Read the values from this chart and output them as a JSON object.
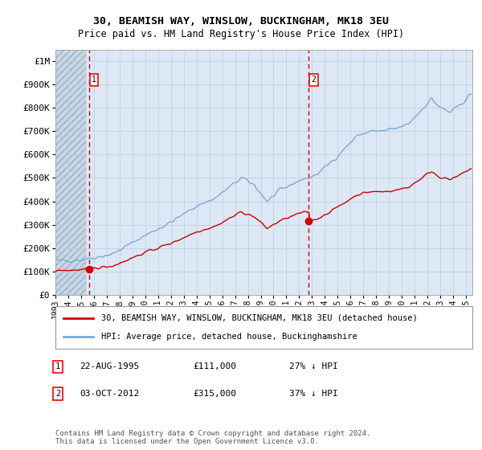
{
  "title1": "30, BEAMISH WAY, WINSLOW, BUCKINGHAM, MK18 3EU",
  "title2": "Price paid vs. HM Land Registry's House Price Index (HPI)",
  "ytick_labels": [
    "£0",
    "£100K",
    "£200K",
    "£300K",
    "£400K",
    "£500K",
    "£600K",
    "£700K",
    "£800K",
    "£900K",
    "£1M"
  ],
  "yticks": [
    0,
    100000,
    200000,
    300000,
    400000,
    500000,
    600000,
    700000,
    800000,
    900000,
    1000000
  ],
  "ylim": [
    0,
    1050000
  ],
  "legend_line1": "30, BEAMISH WAY, WINSLOW, BUCKINGHAM, MK18 3EU (detached house)",
  "legend_line2": "HPI: Average price, detached house, Buckinghamshire",
  "annotation1_label": "1",
  "annotation1_date": "22-AUG-1995",
  "annotation1_price": "£111,000",
  "annotation1_hpi": "27% ↓ HPI",
  "annotation2_label": "2",
  "annotation2_date": "03-OCT-2012",
  "annotation2_price": "£315,000",
  "annotation2_hpi": "37% ↓ HPI",
  "footnote": "Contains HM Land Registry data © Crown copyright and database right 2024.\nThis data is licensed under the Open Government Licence v3.0.",
  "sale1_x": 1995.63,
  "sale1_y": 111000,
  "sale2_x": 2012.75,
  "sale2_y": 315000,
  "hpi_color": "#7aaadd",
  "sale_color": "#cc0000",
  "plot_bg": "#dce8f5",
  "grid_color": "#c0ccd8",
  "hatch_color": "#b8ccd8",
  "xmin": 1993.0,
  "xmax": 2025.5,
  "hatch_xmax": 1995.4
}
